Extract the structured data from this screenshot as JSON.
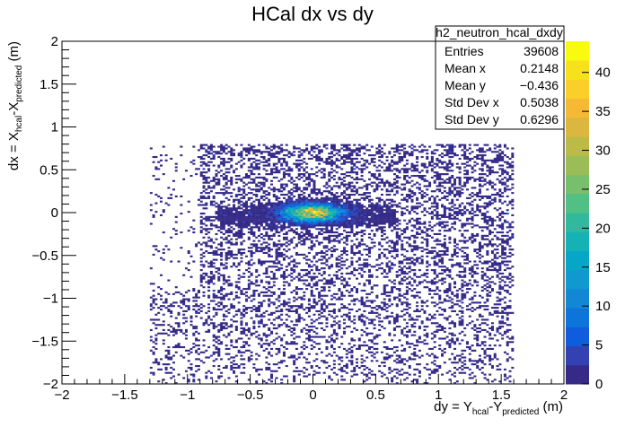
{
  "chart_data": {
    "type": "heatmap",
    "title": "HCal dx vs dy",
    "xlabel": {
      "parts": [
        {
          "t": "dy = Y",
          "sub": false
        },
        {
          "t": "hcal",
          "sub": true
        },
        {
          "t": "-Y",
          "sub": false
        },
        {
          "t": "predicted",
          "sub": true
        },
        {
          "t": " (m)",
          "sub": false
        }
      ]
    },
    "ylabel": {
      "parts": [
        {
          "t": "dx = X",
          "sub": false
        },
        {
          "t": "hcal",
          "sub": true
        },
        {
          "t": "-X",
          "sub": false
        },
        {
          "t": "predicted",
          "sub": true
        },
        {
          "t": " (m)",
          "sub": false
        }
      ]
    },
    "xlim": [
      -2,
      2
    ],
    "ylim": [
      -2,
      2
    ],
    "x_ticks": [
      -2,
      -1.5,
      -1,
      -0.5,
      0,
      0.5,
      1,
      1.5,
      2
    ],
    "x_tick_labels": [
      "−2",
      "−1.5",
      "−1",
      "−0.5",
      "0",
      "0.5",
      "1",
      "1.5",
      "2"
    ],
    "y_ticks": [
      -2,
      -1.5,
      -1,
      -0.5,
      0,
      0.5,
      1,
      1.5,
      2
    ],
    "y_tick_labels": [
      "−2",
      "−1.5",
      "−1",
      "−0.5",
      "0",
      "0.5",
      "1",
      "1.5",
      "2"
    ],
    "z_range": [
      0,
      44
    ],
    "z_ticks": [
      0,
      5,
      10,
      15,
      20,
      25,
      30,
      35,
      40
    ],
    "grid": false,
    "palette": [
      "#352a87",
      "#3342b2",
      "#0f5cdd",
      "#0d74d9",
      "#1287d3",
      "#0f99cf",
      "#06a7c6",
      "#14b2b4",
      "#31b99d",
      "#52bf85",
      "#78bf6c",
      "#9bbd57",
      "#bdbb48",
      "#dbb73f",
      "#f5b936",
      "#fbcf2a",
      "#f7e11d",
      "#f9fb0e"
    ],
    "stats_box": {
      "name": "h2_neutron_hcal_dxdy",
      "rows": [
        {
          "label": "Entries",
          "value": "39608"
        },
        {
          "label": "Mean x",
          "value": "0.2148"
        },
        {
          "label": "Mean y",
          "value": "−0.436"
        },
        {
          "label": "Std Dev x",
          "value": "0.5038"
        },
        {
          "label": "Std Dev y",
          "value": "0.6296"
        }
      ]
    },
    "peak": {
      "dy": 0.0,
      "dx": 0.0,
      "count": 44
    },
    "background_dy_range": [
      -1.3,
      1.6
    ],
    "background_dx_range": [
      -2,
      0.8
    ]
  }
}
